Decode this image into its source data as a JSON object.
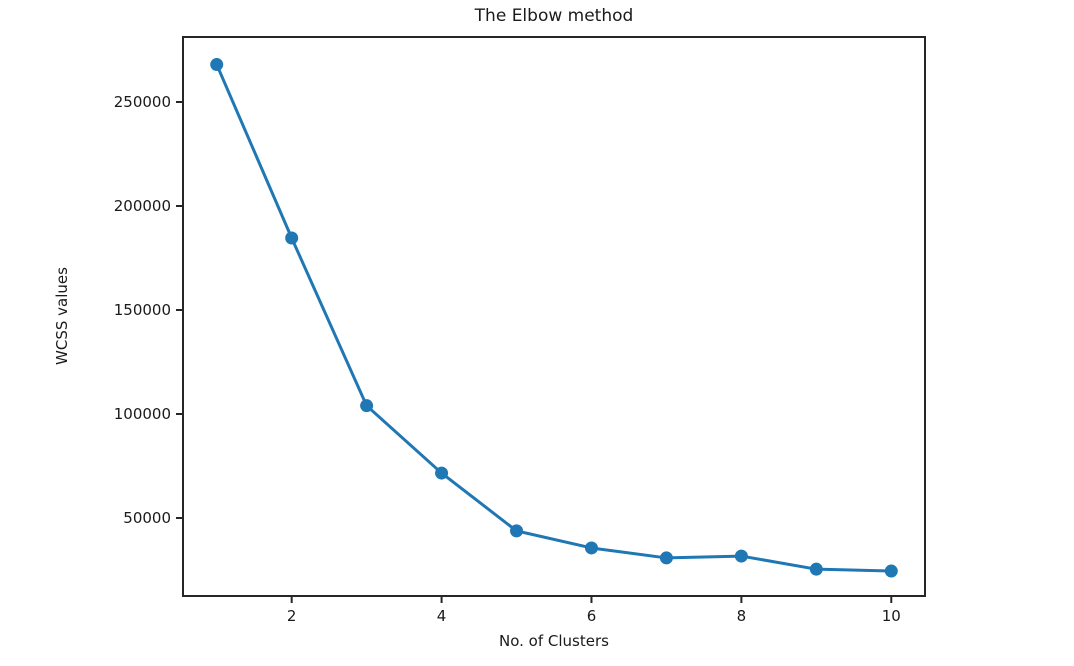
{
  "chart_data": {
    "type": "line",
    "title": "The Elbow method",
    "xlabel": "No. of Clusters",
    "ylabel": "WCSS values",
    "x": [
      1,
      2,
      3,
      4,
      5,
      6,
      7,
      8,
      9,
      10
    ],
    "y": [
      268000,
      184600,
      104000,
      71600,
      43800,
      35600,
      30800,
      31700,
      25400,
      24500
    ],
    "series_name": "WCSS",
    "xlim": [
      0.55,
      10.45
    ],
    "ylim": [
      12500,
      281250
    ],
    "xticks": [
      2,
      4,
      6,
      8,
      10
    ],
    "yticks": [
      50000,
      100000,
      150000,
      200000,
      250000
    ],
    "grid": false,
    "legend": null,
    "line_color": "#1f77b4",
    "marker": "o",
    "axis_color": "#262626",
    "text_color": "#1a1a1a"
  }
}
